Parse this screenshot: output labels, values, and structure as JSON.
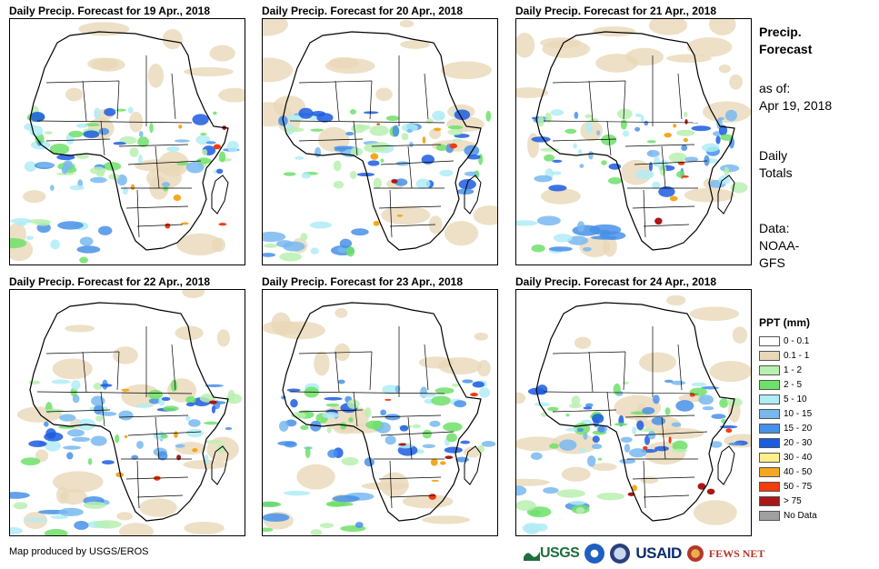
{
  "panels": [
    {
      "title": "Daily Precip. Forecast for 19 Apr., 2018"
    },
    {
      "title": "Daily Precip. Forecast for 20 Apr., 2018"
    },
    {
      "title": "Daily Precip. Forecast for 21 Apr., 2018"
    },
    {
      "title": "Daily Precip. Forecast for 22 Apr., 2018"
    },
    {
      "title": "Daily Precip. Forecast for 23 Apr., 2018"
    },
    {
      "title": "Daily Precip. Forecast for 24 Apr., 2018"
    }
  ],
  "side": {
    "title_line1": "Precip.",
    "title_line2": "Forecast",
    "asof_label": "as of:",
    "asof_date": "Apr 19, 2018",
    "totals_line1": "Daily",
    "totals_line2": "Totals",
    "data_line1": "Data:",
    "data_line2": "NOAA-",
    "data_line3": "GFS"
  },
  "legend": {
    "title": "PPT (mm)",
    "items": [
      {
        "label": "0 - 0.1",
        "color": "#ffffff"
      },
      {
        "label": "0.1 - 1",
        "color": "#e8d8b8"
      },
      {
        "label": "1 - 2",
        "color": "#b8f0b0"
      },
      {
        "label": "2 - 5",
        "color": "#6ee06a"
      },
      {
        "label": "5 - 10",
        "color": "#b0ecf6"
      },
      {
        "label": "10 - 15",
        "color": "#78b8f0"
      },
      {
        "label": "15 - 20",
        "color": "#4890e8"
      },
      {
        "label": "20 - 30",
        "color": "#1c5ce0"
      },
      {
        "label": "30 - 40",
        "color": "#fff08a"
      },
      {
        "label": "40 - 50",
        "color": "#f4a820"
      },
      {
        "label": "50 - 75",
        "color": "#f23c0c"
      },
      {
        "label": "> 75",
        "color": "#a81818"
      },
      {
        "label": "No Data",
        "color": "#a0a0a0"
      }
    ]
  },
  "footer": {
    "credit": "Map produced by USGS/EROS"
  },
  "logos": {
    "usgs": "USGS",
    "usaid": "USAID",
    "fews": "FEWS NET"
  }
}
